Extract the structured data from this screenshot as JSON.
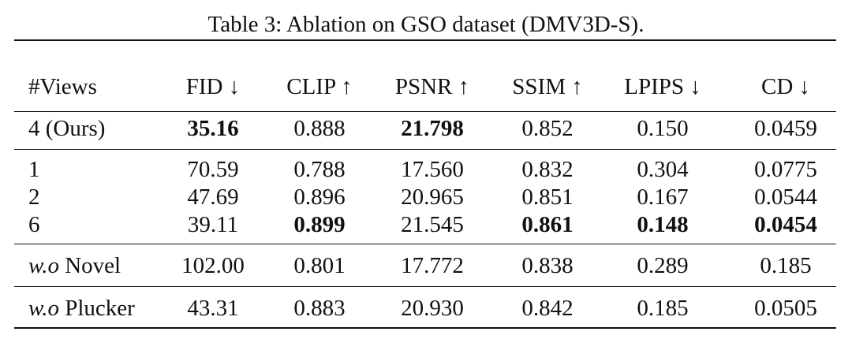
{
  "caption": "Table 3: Ablation on GSO dataset (DMV3D-S).",
  "columns": [
    "#Views",
    "FID ↓",
    "CLIP ↑",
    "PSNR ↑",
    "SSIM ↑",
    "LPIPS ↓",
    "CD ↓"
  ],
  "groups": [
    {
      "rows": [
        {
          "label": "4 (Ours)",
          "label_italic_part": "",
          "values": [
            "35.16",
            "0.888",
            "21.798",
            "0.852",
            "0.150",
            "0.0459"
          ],
          "bold": [
            true,
            false,
            true,
            false,
            false,
            false
          ]
        }
      ]
    },
    {
      "rows": [
        {
          "label": "1",
          "label_italic_part": "",
          "values": [
            "70.59",
            "0.788",
            "17.560",
            "0.832",
            "0.304",
            "0.0775"
          ],
          "bold": [
            false,
            false,
            false,
            false,
            false,
            false
          ]
        },
        {
          "label": "2",
          "label_italic_part": "",
          "values": [
            "47.69",
            "0.896",
            "20.965",
            "0.851",
            "0.167",
            "0.0544"
          ],
          "bold": [
            false,
            false,
            false,
            false,
            false,
            false
          ]
        },
        {
          "label": "6",
          "label_italic_part": "",
          "values": [
            "39.11",
            "0.899",
            "21.545",
            "0.861",
            "0.148",
            "0.0454"
          ],
          "bold": [
            false,
            true,
            false,
            true,
            true,
            true
          ]
        }
      ]
    },
    {
      "rows": [
        {
          "label": " Novel",
          "label_italic_part": "w.o",
          "values": [
            "102.00",
            "0.801",
            "17.772",
            "0.838",
            "0.289",
            "0.185"
          ],
          "bold": [
            false,
            false,
            false,
            false,
            false,
            false
          ]
        }
      ]
    },
    {
      "rows": [
        {
          "label": " Plucker",
          "label_italic_part": "w.o",
          "values": [
            "43.31",
            "0.883",
            "20.930",
            "0.842",
            "0.185",
            "0.0505"
          ],
          "bold": [
            false,
            false,
            false,
            false,
            false,
            false
          ]
        }
      ]
    }
  ]
}
